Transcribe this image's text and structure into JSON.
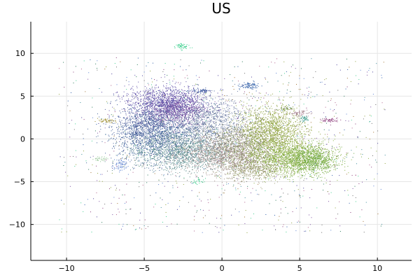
{
  "chart_data": {
    "type": "scatter",
    "title": "US",
    "xlabel": "",
    "ylabel": "",
    "xlim": [
      -12.3,
      12.2
    ],
    "ylim": [
      -14.2,
      13.7
    ],
    "x_ticks": [
      -10,
      -5,
      0,
      5,
      10
    ],
    "y_ticks": [
      -10,
      -5,
      0,
      5,
      10
    ],
    "x_tick_labels": [
      "−10",
      "−5",
      "0",
      "5",
      "10"
    ],
    "y_tick_labels": [
      "−10",
      "−5",
      "0",
      "5",
      "10"
    ],
    "grid": true,
    "legend": "none",
    "background_color": "#ffffff",
    "grid_color": "#e6e6e6",
    "marker_size": 1,
    "clusters": [
      {
        "cx": -3.5,
        "cy": 4.2,
        "sx": 1.3,
        "sy": 1.0,
        "n": 1400,
        "color": "#5f4fa8"
      },
      {
        "cx": -4.2,
        "cy": 0.5,
        "sx": 1.4,
        "sy": 1.6,
        "n": 1600,
        "color": "#41609a"
      },
      {
        "cx": -2.5,
        "cy": -1.5,
        "sx": 1.6,
        "sy": 1.2,
        "n": 1400,
        "color": "#5a8c8c"
      },
      {
        "cx": -1.0,
        "cy": 2.0,
        "sx": 1.5,
        "sy": 1.3,
        "n": 1100,
        "color": "#6a7aa0"
      },
      {
        "cx": 0.3,
        "cy": -1.8,
        "sx": 1.5,
        "sy": 1.1,
        "n": 1300,
        "color": "#a08c8a"
      },
      {
        "cx": 1.2,
        "cy": -0.3,
        "sx": 1.2,
        "sy": 1.2,
        "n": 900,
        "color": "#8c8e70"
      },
      {
        "cx": 3.2,
        "cy": 0.8,
        "sx": 1.1,
        "sy": 1.6,
        "n": 1500,
        "color": "#8ea13c"
      },
      {
        "cx": 4.5,
        "cy": -2.2,
        "sx": 1.4,
        "sy": 1.0,
        "n": 1500,
        "color": "#86ae3d"
      },
      {
        "cx": 5.8,
        "cy": -2.5,
        "sx": 0.8,
        "sy": 0.8,
        "n": 700,
        "color": "#72aa45"
      },
      {
        "cx": -3.0,
        "cy": 3.2,
        "sx": 1.0,
        "sy": 0.8,
        "n": 500,
        "color": "#7a4ea0"
      },
      {
        "cx": -5.0,
        "cy": 2.0,
        "sx": 0.9,
        "sy": 0.9,
        "n": 400,
        "color": "#4a5a9a"
      },
      {
        "cx": 2.0,
        "cy": -3.5,
        "sx": 1.0,
        "sy": 0.7,
        "n": 600,
        "color": "#9a9a70"
      }
    ],
    "islands": [
      {
        "cx": -2.6,
        "cy": 10.8,
        "sx": 0.25,
        "sy": 0.15,
        "n": 60,
        "color": "#3ecf8e"
      },
      {
        "cx": 1.7,
        "cy": 6.2,
        "sx": 0.35,
        "sy": 0.2,
        "n": 90,
        "color": "#2f5ea8"
      },
      {
        "cx": -1.4,
        "cy": 5.6,
        "sx": 0.35,
        "sy": 0.15,
        "n": 70,
        "color": "#3f5aa0"
      },
      {
        "cx": -7.4,
        "cy": 2.1,
        "sx": 0.35,
        "sy": 0.12,
        "n": 50,
        "color": "#9a8a2a"
      },
      {
        "cx": -6.6,
        "cy": -3.0,
        "sx": 0.25,
        "sy": 0.35,
        "n": 70,
        "color": "#5a80d0"
      },
      {
        "cx": 6.9,
        "cy": 2.2,
        "sx": 0.3,
        "sy": 0.12,
        "n": 50,
        "color": "#8a3a7a"
      },
      {
        "cx": 5.0,
        "cy": 3.0,
        "sx": 0.3,
        "sy": 0.2,
        "n": 60,
        "color": "#a07a8a"
      },
      {
        "cx": 5.3,
        "cy": 2.4,
        "sx": 0.15,
        "sy": 0.2,
        "n": 40,
        "color": "#3a9a8a"
      },
      {
        "cx": -7.8,
        "cy": -2.4,
        "sx": 0.2,
        "sy": 0.15,
        "n": 30,
        "color": "#8ac08a"
      },
      {
        "cx": -1.5,
        "cy": -5.0,
        "sx": 0.2,
        "sy": 0.2,
        "n": 25,
        "color": "#3ecf8e"
      },
      {
        "cx": 4.2,
        "cy": 3.6,
        "sx": 0.25,
        "sy": 0.15,
        "n": 30,
        "color": "#6a8a3a"
      },
      {
        "cx": -5.5,
        "cy": 0.5,
        "sx": 0.25,
        "sy": 0.15,
        "n": 30,
        "color": "#2a4a8a"
      }
    ],
    "scatter_background": {
      "n": 1600,
      "xlim": [
        -10.5,
        10.5
      ],
      "ylim": [
        -11,
        9.5
      ]
    },
    "palette": [
      "#4a3f9a",
      "#2f5ea8",
      "#3a8a9a",
      "#7a4ea0",
      "#8ea13c",
      "#b0608a",
      "#3ecf8e",
      "#6a6a6a",
      "#a07030",
      "#5a80d0",
      "#8a3a7a",
      "#2a7a5a"
    ]
  }
}
